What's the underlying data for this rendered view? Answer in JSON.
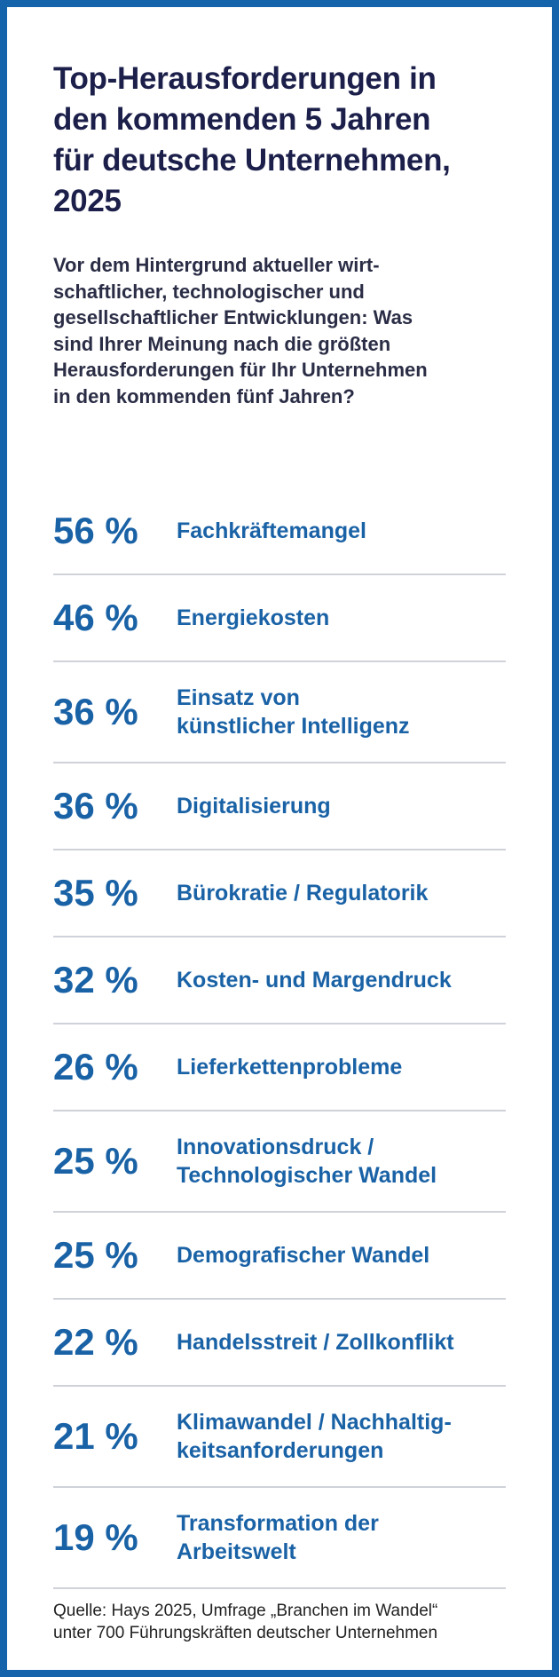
{
  "chart_data": {
    "type": "stat-list",
    "title": "Top-Herausforderungen in\nden kommenden 5 Jahren\nfür deutsche Unternehmen,\n2025",
    "subtitle": "Vor dem Hintergrund aktueller wirt-\nschaftlicher, technologischer und\ngesellschaftlicher Entwicklungen: Was\nsind Ihrer Meinung nach die größten\nHerausforderungen für Ihr Unternehmen\nin den kommenden fünf Jahren?",
    "categories": [
      "Fachkräftemangel",
      "Energiekosten",
      "Einsatz von\nkünstlicher Intelligenz",
      "Digitalisierung",
      "Bürokratie / Regulatorik",
      "Kosten- und Margendruck",
      "Lieferkettenprobleme",
      "Innovationsdruck /\nTechnologischer Wandel",
      "Demografischer Wandel",
      "Handelsstreit / Zollkonflikt",
      "Klimawandel / Nachhaltig-\nkeitsanforderungen",
      "Transformation der\nArbeitswelt"
    ],
    "values": [
      56,
      46,
      36,
      36,
      35,
      32,
      26,
      25,
      25,
      22,
      21,
      19
    ],
    "value_labels": [
      "56 %",
      "46 %",
      "36 %",
      "36 %",
      "35 %",
      "32 %",
      "26 %",
      "25 %",
      "25 %",
      "22 %",
      "21 %",
      "19 %"
    ],
    "color": "#1a62a6",
    "source": "Quelle: Hays 2025, Umfrage „Branchen im Wandel“\nunter 700 Führungskräften deutscher Unternehmen"
  }
}
